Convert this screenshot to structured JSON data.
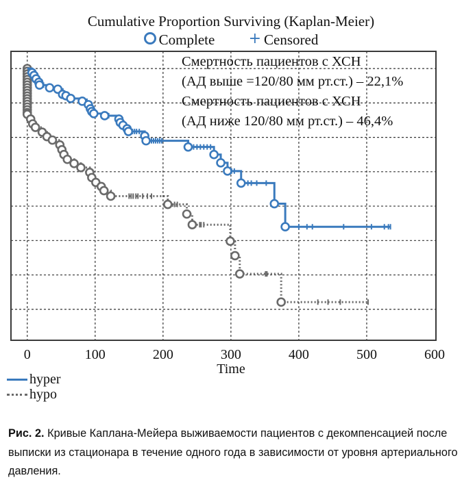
{
  "chart_data": {
    "type": "line",
    "subtype": "kaplan-meier step",
    "title": "Cumulative Proportion Surviving (Kaplan-Meier)",
    "marker_legend": [
      {
        "symbol": "circle",
        "label": "Complete"
      },
      {
        "symbol": "plus",
        "label": "Censored"
      }
    ],
    "xlabel": "Time",
    "ylabel": "",
    "xlim": [
      -24,
      602
    ],
    "ylim": [
      0.21,
      1.05
    ],
    "x_ticks": [
      0,
      100,
      200,
      300,
      400,
      500,
      600
    ],
    "y_gridlines": [
      1.0,
      0.9,
      0.8,
      0.7,
      0.6,
      0.5,
      0.4,
      0.3
    ],
    "grid": true,
    "legend_position": "bottom-left",
    "annotations": [
      "Смертность пациентов с ХСН",
      "(АД выше =120/80 мм рт.ст.) – 22,1%",
      "Смертность пациентов с ХСН",
      "(АД ниже 120/80 мм рт.ст.) – 46,4%"
    ],
    "colors": {
      "hyper": "#3a7abd",
      "hypo": "#6a6a6a"
    },
    "series": [
      {
        "name": "hyper",
        "style": "solid",
        "steps": [
          [
            0,
            1.0
          ],
          [
            7,
            0.988
          ],
          [
            10,
            0.98
          ],
          [
            13,
            0.97
          ],
          [
            17,
            0.96
          ],
          [
            18,
            0.952
          ],
          [
            33,
            0.944
          ],
          [
            45,
            0.94
          ],
          [
            52,
            0.925
          ],
          [
            57,
            0.921
          ],
          [
            64,
            0.913
          ],
          [
            81,
            0.905
          ],
          [
            90,
            0.895
          ],
          [
            93,
            0.883
          ],
          [
            95,
            0.875
          ],
          [
            98,
            0.869
          ],
          [
            114,
            0.863
          ],
          [
            135,
            0.853
          ],
          [
            137,
            0.843
          ],
          [
            141,
            0.835
          ],
          [
            147,
            0.825
          ],
          [
            149,
            0.817
          ],
          [
            173,
            0.804
          ],
          [
            175,
            0.79
          ],
          [
            237,
            0.772
          ],
          [
            275,
            0.75
          ],
          [
            285,
            0.726
          ],
          [
            295,
            0.702
          ],
          [
            315,
            0.667
          ],
          [
            364,
            0.607
          ],
          [
            380,
            0.54
          ]
        ],
        "end_time": 535,
        "censored": [
          24,
          60,
          88,
          120,
          152,
          155,
          158,
          161,
          165,
          180,
          183,
          186,
          189,
          192,
          195,
          198,
          240,
          245,
          250,
          255,
          260,
          265,
          270,
          298,
          301,
          305,
          318,
          325,
          330,
          338,
          352,
          368,
          400,
          412,
          420,
          466,
          507,
          526,
          532
        ]
      },
      {
        "name": "hypo",
        "style": "dotted",
        "steps": [
          [
            0,
            1.0
          ],
          [
            0,
            0.992
          ],
          [
            0,
            0.984
          ],
          [
            0,
            0.976
          ],
          [
            0,
            0.968
          ],
          [
            0,
            0.96
          ],
          [
            0,
            0.952
          ],
          [
            0,
            0.944
          ],
          [
            0,
            0.936
          ],
          [
            0,
            0.928
          ],
          [
            0,
            0.92
          ],
          [
            0,
            0.912
          ],
          [
            0,
            0.904
          ],
          [
            0,
            0.896
          ],
          [
            0,
            0.888
          ],
          [
            0,
            0.88
          ],
          [
            0,
            0.872
          ],
          [
            0,
            0.867
          ],
          [
            5,
            0.853
          ],
          [
            8,
            0.839
          ],
          [
            12,
            0.829
          ],
          [
            22,
            0.815
          ],
          [
            29,
            0.802
          ],
          [
            37,
            0.792
          ],
          [
            48,
            0.778
          ],
          [
            51,
            0.764
          ],
          [
            54,
            0.75
          ],
          [
            59,
            0.736
          ],
          [
            69,
            0.724
          ],
          [
            79,
            0.712
          ],
          [
            92,
            0.698
          ],
          [
            95,
            0.683
          ],
          [
            101,
            0.669
          ],
          [
            109,
            0.657
          ],
          [
            113,
            0.645
          ],
          [
            123,
            0.629
          ],
          [
            207,
            0.605
          ],
          [
            235,
            0.577
          ],
          [
            243,
            0.546
          ],
          [
            299,
            0.498
          ],
          [
            306,
            0.456
          ],
          [
            313,
            0.403
          ],
          [
            374,
            0.321
          ]
        ],
        "end_time": 502,
        "censored": [
          128,
          150,
          153,
          156,
          160,
          163,
          170,
          177,
          183,
          210,
          217,
          221,
          248,
          254,
          256,
          260,
          310,
          315,
          351,
          353,
          428,
          443,
          461
        ]
      }
    ]
  },
  "figure_caption": {
    "label": "Рис. 2.",
    "text": " Кривые Каплана-Мейера выживаемости пациентов с декомпенсацией после выписки из стационара в течение одного года в зависимости от уровня артериального давления."
  }
}
